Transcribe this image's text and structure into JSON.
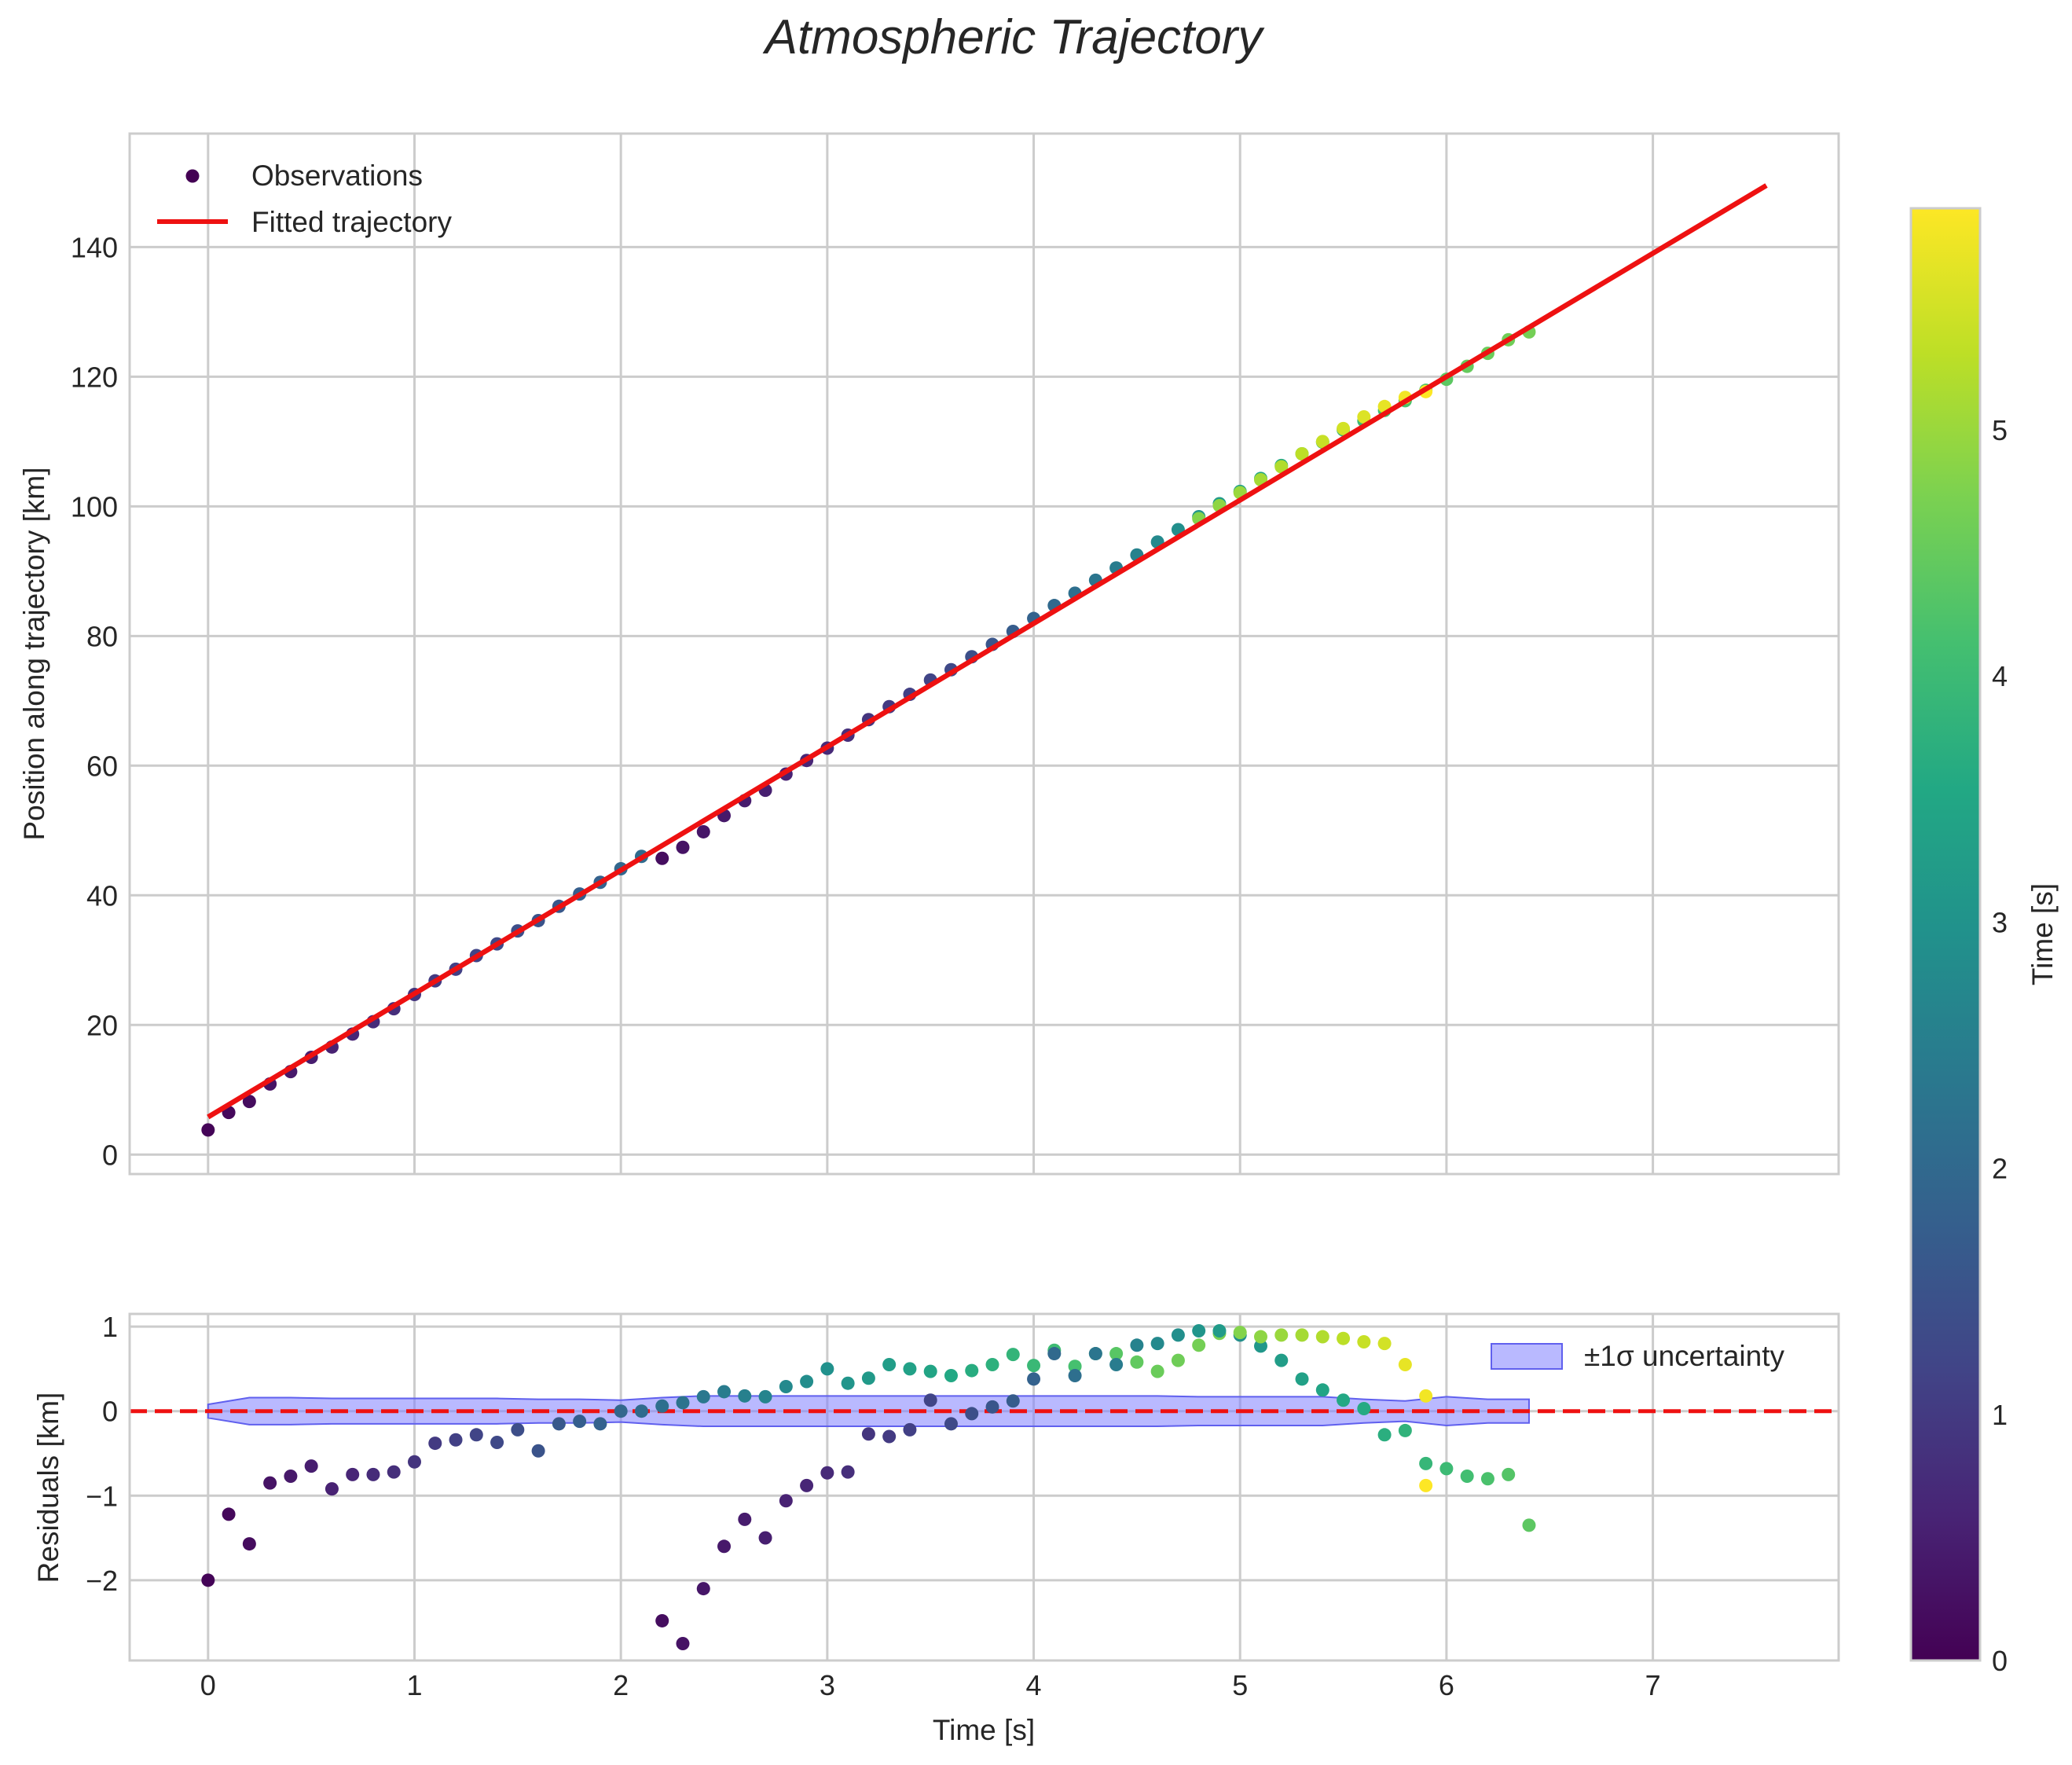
{
  "chart_data": {
    "title": "Atmospheric Trajectory",
    "colormap": "viridis",
    "colorbar": {
      "label": "Time [s]",
      "range": [
        0,
        5.9
      ],
      "ticks": [
        "0",
        "1",
        "2",
        "3",
        "4",
        "5"
      ]
    },
    "top": {
      "type": "scatter",
      "xlim": [
        -0.38,
        7.9
      ],
      "ylim": [
        -3,
        157.5
      ],
      "ylabel": "Position along trajectory [km]",
      "yticks": [
        "0",
        "20",
        "40",
        "60",
        "80",
        "100",
        "120",
        "140"
      ],
      "grid": true,
      "legend": {
        "position": "top-left",
        "observations": "Observations",
        "fit": "Fitted trajectory"
      },
      "fit": {
        "x": [
          0,
          7.55
        ],
        "y": [
          5.8,
          149.5
        ],
        "color": "#ee1111"
      },
      "observations_t": [
        0,
        0.1,
        0.2,
        0.3,
        0.4,
        0.5,
        0.6,
        0.7,
        0.8,
        0.9,
        1.0,
        1.1,
        1.2,
        1.3,
        1.4,
        1.5,
        1.6,
        1.7,
        1.8,
        1.9,
        2.0,
        2.1,
        2.2,
        2.3,
        2.4,
        2.5,
        2.6,
        2.7,
        2.8,
        2.9,
        3.0,
        3.1,
        3.2,
        3.3,
        3.4,
        3.5,
        3.6,
        3.7,
        3.8,
        3.9,
        4.0,
        4.1,
        4.2,
        4.3,
        4.4,
        4.5,
        4.6,
        4.7,
        4.8,
        4.9,
        5.0,
        5.1,
        5.2,
        5.3,
        5.4,
        5.5,
        5.6,
        5.7,
        5.8,
        5.9,
        6.0,
        6.1,
        6.2,
        6.3,
        6.4
      ],
      "observations_y": [
        3.8,
        6.5,
        8.2,
        10.9,
        12.8,
        15.0,
        16.6,
        18.6,
        20.5,
        22.5,
        24.7,
        26.8,
        28.6,
        30.7,
        32.5,
        34.5,
        36.1,
        38.3,
        40.2,
        42.0,
        44.1,
        46.0,
        45.7,
        47.4,
        49.8,
        52.3,
        54.6,
        56.2,
        58.7,
        60.8,
        62.7,
        64.7,
        67.1,
        69.1,
        71.0,
        73.2,
        74.8,
        76.8,
        78.7,
        80.7,
        82.7,
        84.7,
        86.6,
        88.6,
        90.5,
        92.5,
        94.5,
        96.4,
        98.4,
        100.4,
        102.3,
        104.3,
        106.3,
        108.1,
        109.9,
        111.8,
        113.2,
        114.8,
        116.3,
        117.9,
        119.6,
        121.6,
        123.6,
        125.7,
        126.9
      ],
      "observations_c": [
        0.05,
        0.12,
        0.18,
        0.3,
        0.4,
        0.48,
        0.55,
        0.62,
        0.72,
        0.8,
        0.9,
        1.0,
        1.1,
        1.2,
        1.3,
        1.4,
        1.5,
        1.62,
        1.75,
        1.85,
        1.95,
        2.05,
        0.2,
        0.3,
        0.35,
        0.4,
        0.45,
        0.5,
        0.55,
        0.62,
        0.7,
        0.8,
        0.9,
        1.0,
        1.1,
        1.2,
        1.3,
        1.42,
        1.55,
        1.7,
        1.85,
        2.0,
        2.15,
        2.3,
        2.45,
        2.6,
        2.75,
        2.9,
        3.05,
        3.2,
        3.35,
        3.5,
        3.6,
        3.7,
        3.8,
        3.9,
        4.0,
        4.1,
        4.2,
        4.3,
        4.4,
        4.5,
        4.55,
        4.6,
        4.65
      ],
      "overlay_t": [
        4.8,
        4.9,
        5.0,
        5.1,
        5.2,
        5.3,
        5.4,
        5.5,
        5.6,
        5.7,
        5.8,
        5.9
      ],
      "overlay_y": [
        98.1,
        100.1,
        102.1,
        104.1,
        106.1,
        108.1,
        110.0,
        112.0,
        113.8,
        115.4,
        116.8,
        117.7
      ],
      "overlay_c": [
        4.8,
        4.9,
        5.0,
        5.1,
        5.2,
        5.3,
        5.4,
        5.5,
        5.6,
        5.7,
        5.8,
        5.9
      ]
    },
    "bottom": {
      "type": "scatter",
      "xlim": [
        -0.38,
        7.9
      ],
      "ylim": [
        -2.95,
        1.15
      ],
      "xlabel": "Time [s]",
      "ylabel": "Residuals [km]",
      "xticks": [
        "0",
        "1",
        "2",
        "3",
        "4",
        "5",
        "6",
        "7"
      ],
      "yticks": [
        "−2",
        "−1",
        "0",
        "1"
      ],
      "grid": true,
      "zero_line": {
        "y": 0,
        "style": "dashed",
        "color": "#ee1111"
      },
      "band": {
        "label": "±1σ uncertainty",
        "legend_position": "top-right",
        "color": "#8080ff",
        "t": [
          0,
          0.2,
          0.4,
          0.6,
          0.8,
          1.0,
          1.2,
          1.4,
          1.6,
          1.8,
          2.0,
          2.2,
          2.4,
          2.6,
          2.8,
          3.0,
          3.2,
          3.4,
          3.6,
          3.8,
          4.0,
          4.2,
          4.4,
          4.6,
          4.8,
          5.0,
          5.2,
          5.4,
          5.6,
          5.8,
          6.0,
          6.2,
          6.4
        ],
        "half_width": [
          0.08,
          0.16,
          0.16,
          0.15,
          0.15,
          0.15,
          0.15,
          0.15,
          0.14,
          0.14,
          0.13,
          0.16,
          0.18,
          0.18,
          0.18,
          0.18,
          0.18,
          0.18,
          0.18,
          0.18,
          0.18,
          0.18,
          0.18,
          0.18,
          0.17,
          0.17,
          0.17,
          0.17,
          0.14,
          0.12,
          0.17,
          0.14,
          0.14
        ]
      },
      "residuals_t": [
        0,
        0.1,
        0.2,
        0.3,
        0.4,
        0.5,
        0.6,
        0.7,
        0.8,
        0.9,
        1.0,
        1.1,
        1.2,
        1.3,
        1.4,
        1.5,
        1.6,
        1.7,
        1.8,
        1.9,
        2.0,
        2.1,
        2.2,
        2.3,
        2.4,
        2.5,
        2.6,
        2.7,
        2.8,
        2.9,
        3.0,
        3.1,
        3.2,
        3.3,
        3.4,
        3.5,
        3.6,
        3.7,
        3.8,
        3.9,
        4.0,
        4.1,
        4.2,
        4.3,
        4.4,
        4.5,
        4.6,
        4.7,
        4.8,
        4.9,
        5.0,
        5.1,
        5.2,
        5.3,
        5.4,
        5.5,
        5.6,
        5.7,
        5.8,
        5.9,
        6.0,
        6.1,
        6.2,
        6.3,
        6.4
      ],
      "residuals_a": [
        -2.0,
        -1.22,
        -1.57,
        -0.85,
        -0.77,
        -0.65,
        -0.92,
        -0.75,
        -0.75,
        -0.72,
        -0.6,
        -0.38,
        -0.34,
        -0.28,
        -0.37,
        -0.22,
        -0.47,
        -0.15,
        -0.12,
        -0.15,
        0.0,
        0.0,
        0.06,
        0.1,
        0.17,
        0.23,
        0.18,
        0.17,
        0.29,
        0.35,
        0.5,
        0.33,
        0.39,
        0.55,
        0.5,
        0.47,
        0.42,
        0.48,
        0.55,
        0.67,
        0.54,
        0.72,
        0.53,
        0.68,
        0.68,
        0.58,
        0.47,
        0.6,
        0.78,
        0.92,
        0.9,
        0.77,
        0.6,
        0.38,
        0.25,
        0.13,
        0.03,
        -0.28,
        -0.23,
        -0.62,
        -0.68,
        -0.77,
        -0.8,
        -0.75,
        -1.35
      ],
      "residuals_ca": [
        0.05,
        0.12,
        0.18,
        0.3,
        0.4,
        0.48,
        0.55,
        0.62,
        0.72,
        0.8,
        0.9,
        1.0,
        1.1,
        1.2,
        1.3,
        1.4,
        1.5,
        1.62,
        1.75,
        1.85,
        1.95,
        2.05,
        2.15,
        2.25,
        2.35,
        2.45,
        2.55,
        2.65,
        2.75,
        2.85,
        2.95,
        3.05,
        3.15,
        3.25,
        3.35,
        3.45,
        3.55,
        3.65,
        3.75,
        3.85,
        3.95,
        4.05,
        4.15,
        4.25,
        4.35,
        4.45,
        4.55,
        4.6,
        4.65,
        4.7,
        2.9,
        3.1,
        3.25,
        3.35,
        3.45,
        3.55,
        3.6,
        3.7,
        3.8,
        3.9,
        4.0,
        4.1,
        4.2,
        4.3,
        4.4
      ],
      "residuals_tb": [
        2.2,
        2.3,
        2.4,
        2.5,
        2.6,
        2.7,
        2.8,
        2.9,
        3.0,
        3.1,
        3.2,
        3.3,
        3.4,
        3.5,
        3.6,
        3.7,
        3.8,
        3.9,
        4.0,
        4.1,
        4.2,
        4.3,
        4.4,
        4.5,
        4.6,
        4.7,
        4.8,
        4.9,
        5.0,
        5.1,
        5.2,
        5.3,
        5.4,
        5.5,
        5.6,
        5.7,
        5.8,
        5.9
      ],
      "residuals_b": [
        -2.48,
        -2.75,
        -2.1,
        -1.6,
        -1.28,
        -1.5,
        -1.06,
        -0.88,
        -0.73,
        -0.72,
        -0.27,
        -0.3,
        -0.22,
        0.13,
        -0.15,
        -0.03,
        0.05,
        0.12,
        0.38,
        0.68,
        0.42,
        0.68,
        0.55,
        0.78,
        0.8,
        0.9,
        0.95,
        0.95,
        0.93,
        0.88,
        0.9,
        0.9,
        0.88,
        0.86,
        0.82,
        0.8,
        0.55,
        0.18
      ],
      "residuals_cb": [
        0.2,
        0.3,
        0.35,
        0.4,
        0.45,
        0.5,
        0.55,
        0.62,
        0.7,
        0.8,
        0.9,
        1.0,
        1.1,
        1.2,
        1.3,
        1.42,
        1.55,
        1.7,
        1.85,
        2.0,
        2.15,
        2.3,
        2.45,
        2.6,
        2.75,
        2.9,
        3.05,
        3.2,
        4.8,
        4.9,
        5.0,
        5.1,
        5.2,
        5.3,
        5.4,
        5.5,
        5.7,
        5.8
      ],
      "overlay_t": [
        5.9
      ],
      "overlay_a": [
        -0.88
      ],
      "overlay_c": [
        5.9
      ]
    }
  }
}
